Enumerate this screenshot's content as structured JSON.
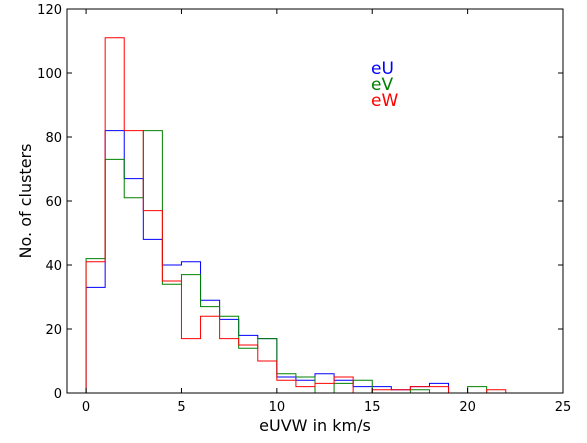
{
  "chart_data": {
    "type": "histogram",
    "xlabel": "eUVW in km/s",
    "ylabel": "No. of clusters",
    "xlim": [
      -1,
      25
    ],
    "ylim": [
      0,
      120
    ],
    "xticks": [
      0,
      5,
      10,
      15,
      20,
      25
    ],
    "yticks": [
      0,
      20,
      40,
      60,
      80,
      100,
      120
    ],
    "bin_edges": [
      0,
      1,
      2,
      3,
      4,
      5,
      6,
      7,
      8,
      9,
      10,
      11,
      12,
      13,
      14,
      15,
      16,
      17,
      18,
      19,
      20,
      21,
      22,
      23,
      24,
      25
    ],
    "grid": false,
    "legend_position": "upper-right (text-only labels)",
    "series": [
      {
        "name": "eU",
        "color": "#0000ff",
        "values": [
          33,
          82,
          67,
          48,
          40,
          41,
          29,
          23,
          18,
          17,
          5,
          4,
          6,
          4,
          2,
          2,
          1,
          2,
          3,
          0,
          0,
          0,
          0,
          0,
          0
        ]
      },
      {
        "name": "eV",
        "color": "#008000",
        "values": [
          42,
          73,
          61,
          82,
          34,
          37,
          27,
          24,
          14,
          17,
          6,
          5,
          0,
          3,
          4,
          0,
          0,
          1,
          0,
          0,
          2,
          0,
          0,
          0,
          0
        ]
      },
      {
        "name": "eW",
        "color": "#ff0000",
        "values": [
          41,
          111,
          82,
          57,
          35,
          17,
          24,
          17,
          15,
          10,
          4,
          2,
          3,
          5,
          0,
          1,
          1,
          2,
          2,
          0,
          0,
          1,
          0,
          0,
          0
        ]
      }
    ]
  }
}
